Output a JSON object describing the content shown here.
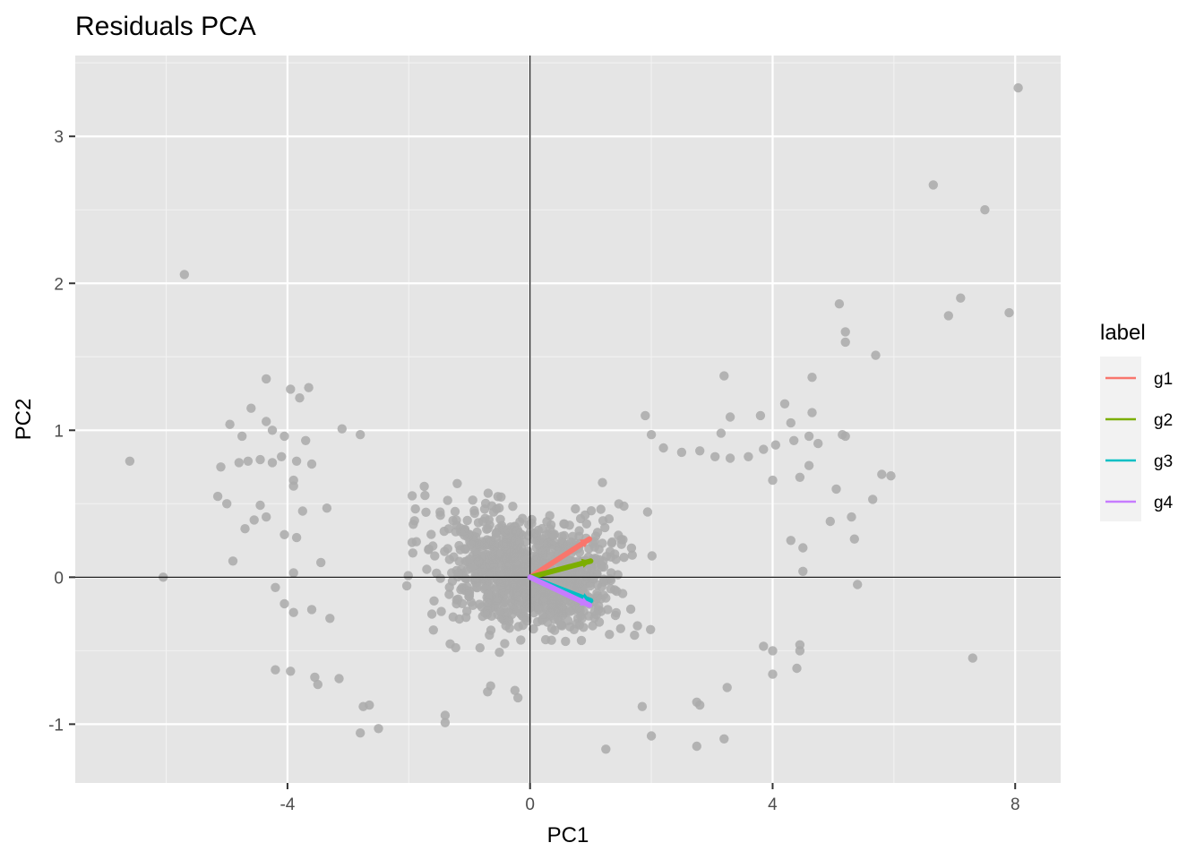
{
  "chart_data": {
    "type": "scatter",
    "title": "Residuals PCA",
    "xlabel": "PC1",
    "ylabel": "PC2",
    "xlim": [
      -7.5,
      8.75
    ],
    "ylim": [
      -1.4,
      3.55
    ],
    "x_ticks": [
      -4,
      0,
      4,
      8
    ],
    "x_tick_labels": [
      "-4",
      "0",
      "4",
      "8"
    ],
    "y_ticks": [
      -1,
      0,
      1,
      2,
      3
    ],
    "y_tick_labels": [
      "-1",
      "0",
      "1",
      "2",
      "3"
    ],
    "grid": true,
    "reference_lines": {
      "x": 0,
      "y": 0
    },
    "point_color": "#aaaaaa",
    "panel_background": "#e5e5e5",
    "points": [
      [
        -6.6,
        0.79
      ],
      [
        -6.05,
        0.0
      ],
      [
        -5.7,
        2.06
      ],
      [
        -3.95,
        1.28
      ],
      [
        -3.65,
        1.29
      ],
      [
        -4.35,
        1.35
      ],
      [
        -3.8,
        1.22
      ],
      [
        -4.6,
        1.15
      ],
      [
        -4.35,
        1.06
      ],
      [
        -4.25,
        1.0
      ],
      [
        -4.05,
        0.96
      ],
      [
        -4.75,
        0.96
      ],
      [
        -4.95,
        1.04
      ],
      [
        -3.7,
        0.93
      ],
      [
        -3.1,
        1.01
      ],
      [
        -2.8,
        0.97
      ],
      [
        -4.1,
        0.82
      ],
      [
        -4.25,
        0.78
      ],
      [
        -4.45,
        0.8
      ],
      [
        -4.65,
        0.79
      ],
      [
        -4.8,
        0.78
      ],
      [
        -5.1,
        0.75
      ],
      [
        -3.85,
        0.79
      ],
      [
        -3.6,
        0.77
      ],
      [
        -3.9,
        0.66
      ],
      [
        -3.9,
        0.62
      ],
      [
        -5.15,
        0.55
      ],
      [
        -5.0,
        0.5
      ],
      [
        -4.45,
        0.49
      ],
      [
        -4.35,
        0.41
      ],
      [
        -4.55,
        0.39
      ],
      [
        -4.7,
        0.33
      ],
      [
        -4.9,
        0.11
      ],
      [
        -4.05,
        0.29
      ],
      [
        -3.75,
        0.45
      ],
      [
        -3.35,
        0.47
      ],
      [
        -3.85,
        0.27
      ],
      [
        -3.9,
        0.03
      ],
      [
        -3.45,
        0.1
      ],
      [
        -4.2,
        -0.07
      ],
      [
        -4.05,
        -0.18
      ],
      [
        -3.9,
        -0.24
      ],
      [
        -3.6,
        -0.22
      ],
      [
        -3.3,
        -0.28
      ],
      [
        -4.2,
        -0.63
      ],
      [
        -3.95,
        -0.64
      ],
      [
        -3.55,
        -0.68
      ],
      [
        -3.5,
        -0.73
      ],
      [
        -3.15,
        -0.69
      ],
      [
        -2.75,
        -0.88
      ],
      [
        -2.65,
        -0.87
      ],
      [
        -2.8,
        -1.06
      ],
      [
        -2.5,
        -1.03
      ],
      [
        -1.4,
        -0.94
      ],
      [
        -1.4,
        -0.99
      ],
      [
        -0.65,
        -0.74
      ],
      [
        -0.7,
        -0.78
      ],
      [
        -0.25,
        -0.77
      ],
      [
        -0.2,
        -0.82
      ],
      [
        1.9,
        1.1
      ],
      [
        2.0,
        0.97
      ],
      [
        2.2,
        0.88
      ],
      [
        2.5,
        0.85
      ],
      [
        3.2,
        1.37
      ],
      [
        3.3,
        1.09
      ],
      [
        3.8,
        1.1
      ],
      [
        4.2,
        1.18
      ],
      [
        4.3,
        1.05
      ],
      [
        4.65,
        1.36
      ],
      [
        4.65,
        1.12
      ],
      [
        4.6,
        0.96
      ],
      [
        4.75,
        0.91
      ],
      [
        4.35,
        0.93
      ],
      [
        4.05,
        0.9
      ],
      [
        3.85,
        0.87
      ],
      [
        3.6,
        0.82
      ],
      [
        3.3,
        0.81
      ],
      [
        3.05,
        0.82
      ],
      [
        2.8,
        0.86
      ],
      [
        3.15,
        0.98
      ],
      [
        4.6,
        0.76
      ],
      [
        5.15,
        0.97
      ],
      [
        5.2,
        0.96
      ],
      [
        5.1,
        1.86
      ],
      [
        5.2,
        1.67
      ],
      [
        5.2,
        1.6
      ],
      [
        5.7,
        1.51
      ],
      [
        5.8,
        0.7
      ],
      [
        5.95,
        0.69
      ],
      [
        5.65,
        0.53
      ],
      [
        5.3,
        0.41
      ],
      [
        5.35,
        0.26
      ],
      [
        5.05,
        0.6
      ],
      [
        4.95,
        0.38
      ],
      [
        5.4,
        -0.05
      ],
      [
        4.45,
        0.68
      ],
      [
        4.0,
        0.66
      ],
      [
        4.3,
        0.25
      ],
      [
        4.5,
        0.2
      ],
      [
        4.5,
        0.04
      ],
      [
        4.45,
        -0.46
      ],
      [
        4.45,
        -0.5
      ],
      [
        4.4,
        -0.62
      ],
      [
        4.0,
        -0.5
      ],
      [
        4.0,
        -0.66
      ],
      [
        3.85,
        -0.47
      ],
      [
        3.25,
        -0.75
      ],
      [
        3.2,
        -1.1
      ],
      [
        2.75,
        -1.15
      ],
      [
        2.0,
        -1.08
      ],
      [
        2.75,
        -0.85
      ],
      [
        2.8,
        -0.87
      ],
      [
        1.85,
        -0.88
      ],
      [
        1.25,
        -1.17
      ],
      [
        6.65,
        2.67
      ],
      [
        7.5,
        2.5
      ],
      [
        7.1,
        1.9
      ],
      [
        6.9,
        1.78
      ],
      [
        7.9,
        1.8
      ],
      [
        8.05,
        3.33
      ],
      [
        7.3,
        -0.55
      ]
    ],
    "cloud": {
      "seed": 20240517,
      "count": 1000,
      "x_range": [
        -4.3,
        4.8
      ],
      "y_center": [
        0.12,
        0.0,
        -0.06
      ],
      "y_spread": 0.55,
      "arc_weight": 0.028
    },
    "series": [
      {
        "name": "g1",
        "color": "#f8766d",
        "x": 0.98,
        "y": 0.26
      },
      {
        "name": "g2",
        "color": "#7cae00",
        "x": 1.0,
        "y": 0.11
      },
      {
        "name": "g3",
        "color": "#00bfc4",
        "x": 1.0,
        "y": -0.16
      },
      {
        "name": "g4",
        "color": "#c77cff",
        "x": 0.98,
        "y": -0.19
      }
    ],
    "legend": {
      "title": "label",
      "placement": "right",
      "items": [
        "g1",
        "g2",
        "g3",
        "g4"
      ]
    }
  }
}
